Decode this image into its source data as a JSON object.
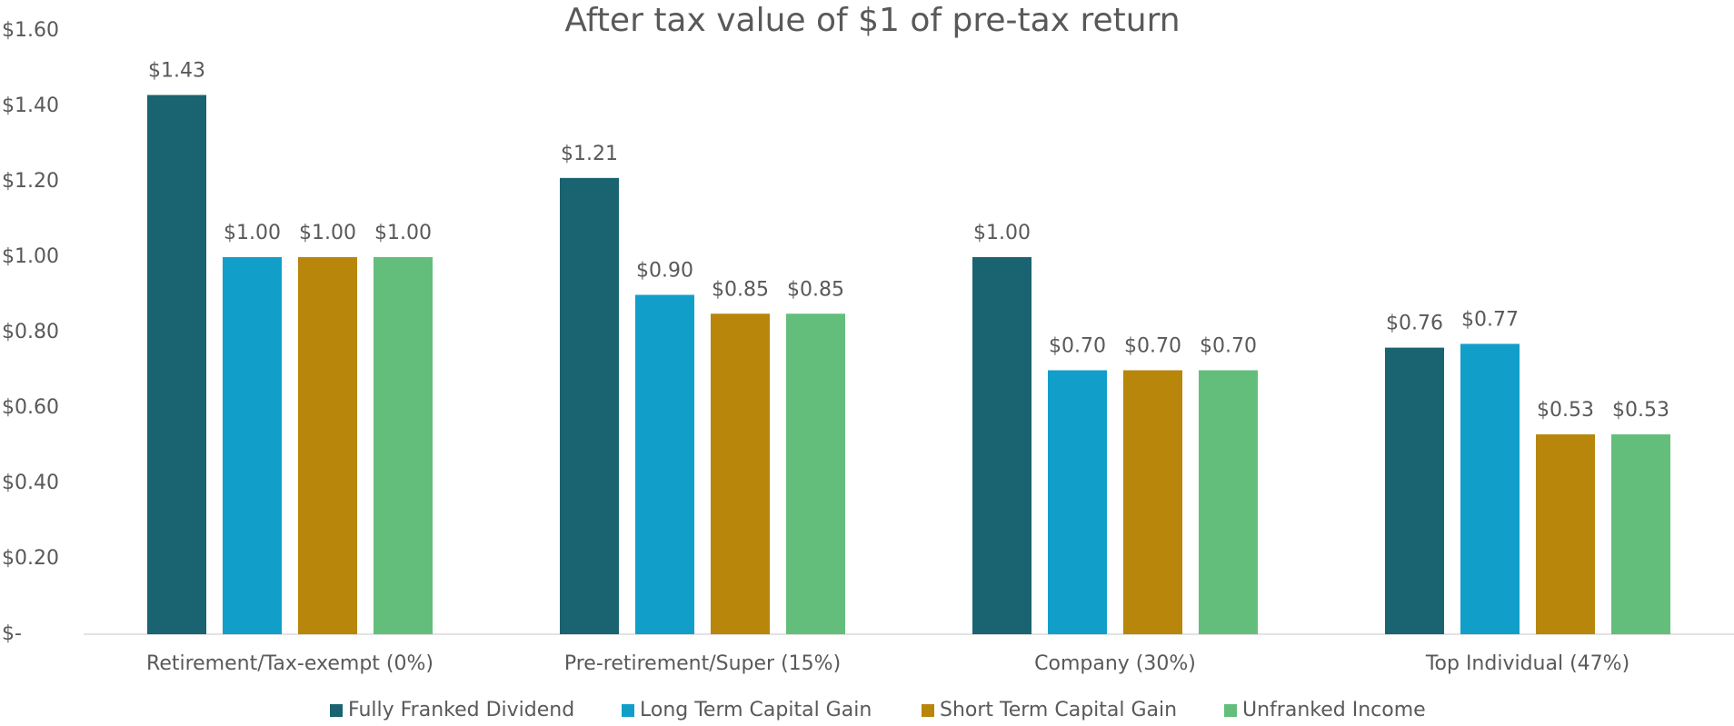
{
  "chart_data": {
    "type": "bar",
    "title": "After tax value of $1 of pre-tax return",
    "categories": [
      "Retirement/Tax-exempt (0%)",
      "Pre-retirement/Super (15%)",
      "Company (30%)",
      "Top Individual (47%)"
    ],
    "series": [
      {
        "name": "Fully Franked Dividend",
        "color": "#1a6371",
        "values": [
          1.43,
          1.21,
          1.0,
          0.76
        ],
        "value_labels": [
          "$1.43",
          "$1.21",
          "$1.00",
          "$0.76"
        ]
      },
      {
        "name": "Long Term Capital Gain",
        "color": "#119fca",
        "values": [
          1.0,
          0.9,
          0.7,
          0.77
        ],
        "value_labels": [
          "$1.00",
          "$0.90",
          "$0.70",
          "$0.77"
        ]
      },
      {
        "name": "Short Term Capital Gain",
        "color": "#b7860b",
        "values": [
          1.0,
          0.85,
          0.7,
          0.53
        ],
        "value_labels": [
          "$1.00",
          "$0.85",
          "$0.70",
          "$0.53"
        ]
      },
      {
        "name": "Unfranked Income",
        "color": "#63be7b",
        "values": [
          1.0,
          0.85,
          0.7,
          0.53
        ],
        "value_labels": [
          "$1.00",
          "$0.85",
          "$0.70",
          "$0.53"
        ]
      }
    ],
    "ylim": [
      0,
      1.6
    ],
    "yticks": [
      {
        "value": 0,
        "label": "$-"
      },
      {
        "value": 0.2,
        "label": "$0.20"
      },
      {
        "value": 0.4,
        "label": "$0.40"
      },
      {
        "value": 0.6,
        "label": "$0.60"
      },
      {
        "value": 0.8,
        "label": "$0.80"
      },
      {
        "value": 1.0,
        "label": "$1.00"
      },
      {
        "value": 1.2,
        "label": "$1.20"
      },
      {
        "value": 1.4,
        "label": "$1.40"
      },
      {
        "value": 1.6,
        "label": "$1.60"
      }
    ],
    "grid": false,
    "legend": "bottom"
  }
}
